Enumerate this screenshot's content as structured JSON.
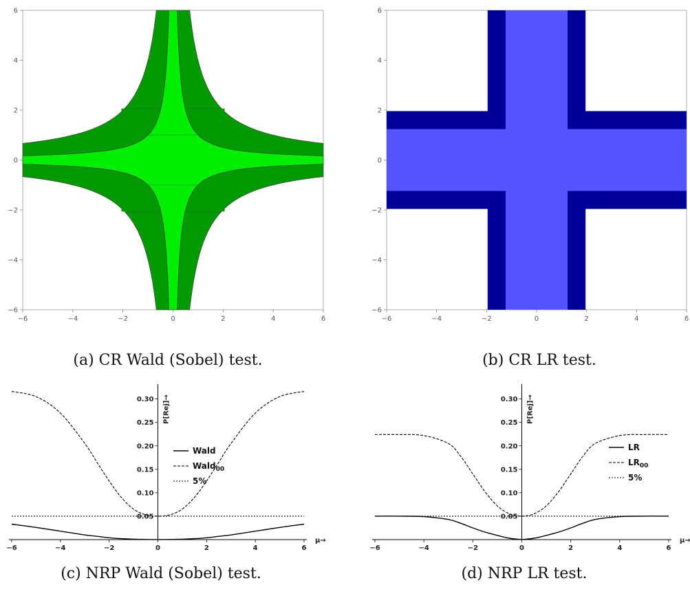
{
  "chart_data": [
    {
      "id": "a",
      "type": "region",
      "caption": "(a) CR Wald (Sobel) test.",
      "xlim": [
        -6,
        6
      ],
      "ylim": [
        -6,
        6
      ],
      "xticks": [
        "−6",
        "−4",
        "−2",
        "0",
        "2",
        "4",
        "6"
      ],
      "yticks": [
        "−6",
        "−4",
        "−2",
        "0",
        "2",
        "4",
        "6"
      ],
      "colors": {
        "outer": "#009900",
        "inner": "#00ee00",
        "edge": "#444444"
      },
      "regions": [
        {
          "name": "outer",
          "shape": "hyperbolic cross",
          "product": 4.0,
          "band_halfwidth": 2.06
        },
        {
          "name": "inner",
          "shape": "hyperbolic cross",
          "product": 1.0,
          "band_halfwidth": 1.0
        }
      ]
    },
    {
      "id": "b",
      "type": "region",
      "caption": "(b) CR LR test.",
      "xlim": [
        -6,
        6
      ],
      "ylim": [
        -6,
        6
      ],
      "xticks": [
        "−6",
        "−4",
        "−2",
        "0",
        "2",
        "4",
        "6"
      ],
      "yticks": [
        "−6",
        "−4",
        "−2",
        "0",
        "2",
        "4",
        "6"
      ],
      "colors": {
        "outer": "#000099",
        "inner": "#5555ff"
      },
      "regions": [
        {
          "name": "outer",
          "shape": "cross",
          "halfwidth": 1.96
        },
        {
          "name": "inner",
          "shape": "cross",
          "halfwidth": 1.24
        }
      ]
    },
    {
      "id": "c",
      "type": "line",
      "caption": "(c) NRP Wald (Sobel) test.",
      "xlabel": "μ→",
      "ylabel": "P[Rej]→",
      "xlim": [
        -6,
        6
      ],
      "ylim": [
        0,
        0.32
      ],
      "xticks": [
        "−6",
        "−4",
        "−2",
        "0",
        "2",
        "4",
        "6"
      ],
      "yticks": [
        "0.05",
        "0.10",
        "0.15",
        "0.20",
        "0.25",
        "0.30"
      ],
      "legend": [
        {
          "label": "Wald",
          "sub": "",
          "style": "solid"
        },
        {
          "label": "Wald",
          "sub": "00",
          "style": "dashed"
        },
        {
          "label": "5%",
          "sub": "",
          "style": "dotted"
        }
      ],
      "x": [
        -6,
        -5,
        -4,
        -3,
        -2.5,
        -2,
        -1.5,
        -1,
        -0.5,
        0,
        0.5,
        1,
        1.5,
        2,
        2.5,
        3,
        4,
        5,
        6
      ],
      "series": [
        {
          "style": "solid",
          "values": [
            0.033,
            0.026,
            0.018,
            0.01,
            0.007,
            0.004,
            0.002,
            0.001,
            0.0004,
            0.0002,
            0.0004,
            0.001,
            0.002,
            0.004,
            0.007,
            0.01,
            0.018,
            0.026,
            0.033
          ]
        },
        {
          "style": "dashed",
          "values": [
            0.316,
            0.305,
            0.27,
            0.205,
            0.165,
            0.125,
            0.09,
            0.065,
            0.053,
            0.05,
            0.053,
            0.065,
            0.09,
            0.125,
            0.165,
            0.205,
            0.27,
            0.305,
            0.316
          ]
        },
        {
          "style": "dotted",
          "values": [
            0.05,
            0.05,
            0.05,
            0.05,
            0.05,
            0.05,
            0.05,
            0.05,
            0.05,
            0.05,
            0.05,
            0.05,
            0.05,
            0.05,
            0.05,
            0.05,
            0.05,
            0.05,
            0.05
          ]
        }
      ]
    },
    {
      "id": "d",
      "type": "line",
      "caption": "(d) NRP LR test.",
      "xlabel": "μ→",
      "ylabel": "P[Rej]→",
      "xlim": [
        -6,
        6
      ],
      "ylim": [
        0,
        0.32
      ],
      "xticks": [
        "−6",
        "−4",
        "−2",
        "0",
        "2",
        "4",
        "6"
      ],
      "yticks": [
        "0.05",
        "0.10",
        "0.15",
        "0.20",
        "0.25",
        "0.30"
      ],
      "legend": [
        {
          "label": "LR",
          "sub": "",
          "style": "solid"
        },
        {
          "label": "LR",
          "sub": "00",
          "style": "dashed"
        },
        {
          "label": "5%",
          "sub": "",
          "style": "dotted"
        }
      ],
      "x": [
        -6,
        -5,
        -4,
        -3,
        -2.5,
        -2,
        -1.5,
        -1,
        -0.5,
        0,
        0.5,
        1,
        1.5,
        2,
        2.5,
        3,
        4,
        5,
        6
      ],
      "series": [
        {
          "style": "solid",
          "values": [
            0.05,
            0.05,
            0.049,
            0.043,
            0.035,
            0.025,
            0.016,
            0.009,
            0.003,
            0.0005,
            0.003,
            0.009,
            0.016,
            0.025,
            0.035,
            0.043,
            0.049,
            0.05,
            0.05
          ]
        },
        {
          "style": "dashed",
          "values": [
            0.224,
            0.224,
            0.222,
            0.205,
            0.178,
            0.14,
            0.102,
            0.072,
            0.055,
            0.05,
            0.055,
            0.072,
            0.102,
            0.14,
            0.178,
            0.205,
            0.222,
            0.224,
            0.224
          ]
        },
        {
          "style": "dotted",
          "values": [
            0.05,
            0.05,
            0.05,
            0.05,
            0.05,
            0.05,
            0.05,
            0.05,
            0.05,
            0.05,
            0.05,
            0.05,
            0.05,
            0.05,
            0.05,
            0.05,
            0.05,
            0.05,
            0.05
          ]
        }
      ]
    }
  ]
}
